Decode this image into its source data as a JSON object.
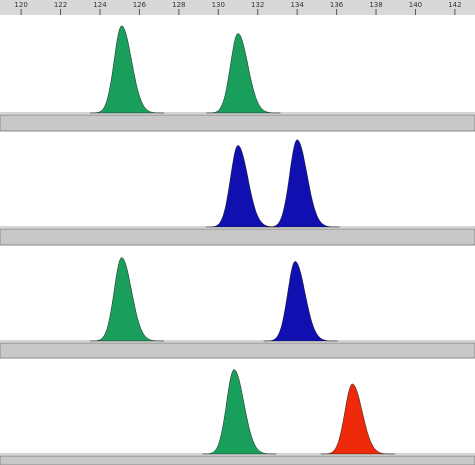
{
  "chart_data": [
    {
      "type": "peaks",
      "xlim": [
        118.93,
        143.02
      ],
      "ylim": [
        0,
        100
      ],
      "xticks": [
        120,
        122,
        124,
        126,
        128,
        130,
        132,
        134,
        136,
        138,
        140,
        142
      ],
      "peaks": [
        {
          "size": 125.1,
          "height": 90,
          "color": "#1a9e5c"
        },
        {
          "size": 131.0,
          "height": 82,
          "color": "#1a9e5c"
        }
      ]
    },
    {
      "type": "peaks",
      "xlim": [
        118.93,
        143.02
      ],
      "ylim": [
        0,
        100
      ],
      "peaks": [
        {
          "size": 131.0,
          "height": 85,
          "color": "#1010b0"
        },
        {
          "size": 134.0,
          "height": 91,
          "color": "#1010b0"
        }
      ]
    },
    {
      "type": "peaks",
      "xlim": [
        118.93,
        143.02
      ],
      "ylim": [
        0,
        100
      ],
      "peaks": [
        {
          "size": 125.1,
          "height": 87,
          "color": "#1a9e5c"
        },
        {
          "size": 133.9,
          "height": 83,
          "color": "#1010b0"
        }
      ]
    },
    {
      "type": "peaks",
      "xlim": [
        118.93,
        143.02
      ],
      "ylim": [
        0,
        100
      ],
      "peaks": [
        {
          "size": 130.8,
          "height": 88,
          "color": "#1a9e5c"
        },
        {
          "size": 136.8,
          "height": 73,
          "color": "#ee2a0a"
        }
      ]
    }
  ]
}
